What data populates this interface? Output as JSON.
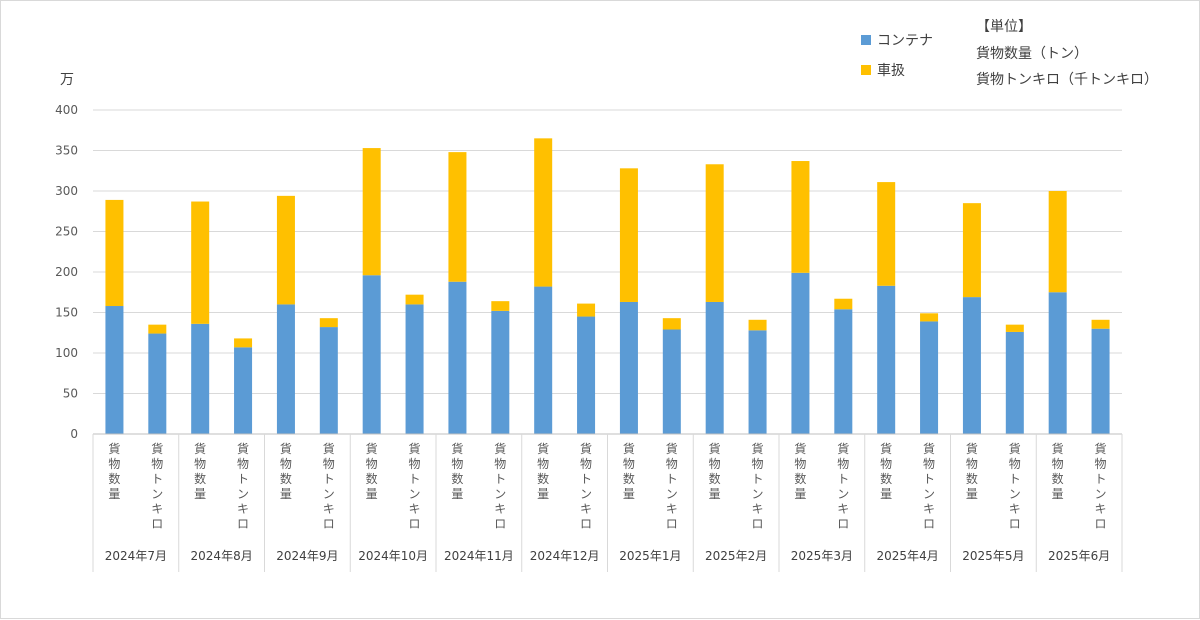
{
  "chart_data": {
    "type": "bar",
    "stacked": true,
    "y_unit": "万",
    "ylim": [
      0,
      400
    ],
    "yticks": [
      0,
      50,
      100,
      150,
      200,
      250,
      300,
      350,
      400
    ],
    "grid": true,
    "legend_position": "top-right",
    "groups": [
      "2024年7月",
      "2024年8月",
      "2024年9月",
      "2024年10月",
      "2024年11月",
      "2024年12月",
      "2025年1月",
      "2025年2月",
      "2025年3月",
      "2025年4月",
      "2025年5月",
      "2025年6月"
    ],
    "subcategories": [
      "貨物数量",
      "貨物トンキロ"
    ],
    "series": [
      {
        "name": "コンテナ",
        "color": "#5b9bd5",
        "values": [
          158,
          124,
          136,
          107,
          160,
          132,
          196,
          160,
          188,
          152,
          182,
          145,
          163,
          129,
          163,
          128,
          199,
          154,
          183,
          139,
          169,
          126,
          175,
          130
        ]
      },
      {
        "name": "車扱",
        "color": "#ffc000",
        "values": [
          131,
          11,
          151,
          11,
          134,
          11,
          157,
          12,
          160,
          12,
          183,
          16,
          165,
          14,
          170,
          13,
          138,
          13,
          128,
          10,
          116,
          9,
          125,
          11
        ]
      }
    ],
    "unit_note": {
      "title": "【単位】",
      "lines": [
        "貨物数量（トン）",
        "貨物トンキロ（千トンキロ）"
      ]
    }
  }
}
